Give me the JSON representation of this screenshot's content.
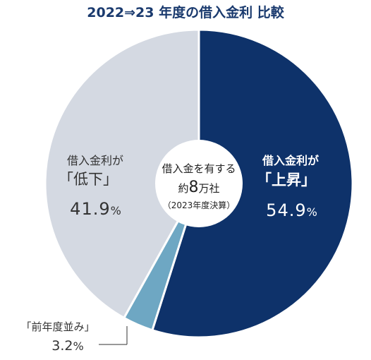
{
  "title": "2022⇒23 年度の借入金利  比較",
  "center_label": {
    "line1": "借入金を有する",
    "line2_prefix": "約",
    "line2_number": "8",
    "line2_suffix": "万社",
    "line3": "（2023年度決算）"
  },
  "colors": {
    "up": "#0e326a",
    "same": "#6ea7c3",
    "down": "#d4d9e2",
    "center": "#ffffff",
    "title": "#1a3a6e"
  },
  "chart_data": {
    "type": "pie",
    "title": "2022⇒23 年度の借入金利  比較",
    "slices": [
      {
        "key": "up",
        "label_line1": "借入金利が",
        "label_line2": "「上昇」",
        "value": 54.9,
        "unit": "%"
      },
      {
        "key": "same",
        "label_line1": "「前年度並み」",
        "label_line2": "",
        "value": 3.2,
        "unit": "%"
      },
      {
        "key": "down",
        "label_line1": "借入金利が",
        "label_line2": "「低下」",
        "value": 41.9,
        "unit": "%"
      }
    ],
    "start": "12 o'clock",
    "direction": "clockwise",
    "donut": true
  }
}
